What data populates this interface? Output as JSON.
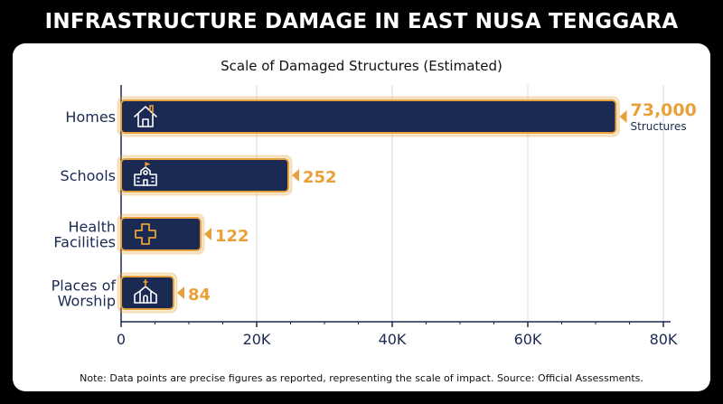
{
  "title": "INFRASTRUCTURE DAMAGE IN EAST NUSA TENGGARA",
  "note": "Note: Data points are precise figures as reported, representing the scale of impact. Source: Official Assessments.",
  "colors": {
    "bar": "#1a2a52",
    "accent": "#e8a13a",
    "text": "#1a2a52",
    "grid": "#d9d9d9"
  },
  "chart_data": {
    "type": "bar",
    "orientation": "horizontal",
    "title": "Scale of Damaged Structures (Estimated)",
    "categories": [
      {
        "label_lines": [
          "Homes"
        ],
        "icon": "house-icon"
      },
      {
        "label_lines": [
          "Schools"
        ],
        "icon": "school-icon"
      },
      {
        "label_lines": [
          "Health",
          "Facilities"
        ],
        "icon": "medical-cross-icon"
      },
      {
        "label_lines": [
          "Places of",
          "Worship"
        ],
        "icon": "church-icon"
      }
    ],
    "values": [
      73000,
      252,
      122,
      84
    ],
    "data_labels": [
      "73,000",
      "252",
      "122",
      "84"
    ],
    "data_label_units": [
      "Structures",
      "",
      "",
      ""
    ],
    "xlim": [
      0,
      80000
    ],
    "xticks": [
      0,
      20000,
      40000,
      60000,
      80000
    ],
    "xtick_labels": [
      "0",
      "20K",
      "40K",
      "60K",
      "80K"
    ],
    "grid": true
  }
}
